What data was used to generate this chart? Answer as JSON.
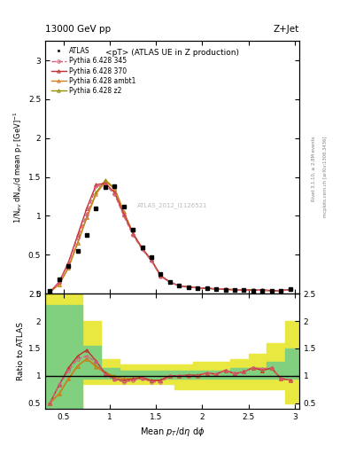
{
  "title_top": "13000 GeV pp",
  "title_right": "Z+Jet",
  "plot_title": "<pT> (ATLAS UE in Z production)",
  "xlabel": "Mean $p_T$/d$\\eta$ d$\\phi$",
  "ylabel_main": "1/N$_{ev}$ dN$_{ev}$/d mean p$_T$ [GeV]$^{-1}$",
  "ylabel_ratio": "Ratio to ATLAS",
  "right_label1": "Rivet 3.1.10, ≥ 2.8M events",
  "right_label2": "mcplots.cern.ch [arXiv:1306.3436]",
  "watermark": "ATLAS_2012_I1126521",
  "xlim": [
    0.3,
    3.05
  ],
  "ylim_main": [
    0.0,
    3.25
  ],
  "ylim_ratio": [
    0.4,
    2.5
  ],
  "xticks": [
    0.5,
    1.0,
    1.5,
    2.0,
    2.5,
    3.0
  ],
  "yticks_main": [
    0.0,
    0.5,
    1.0,
    1.5,
    2.0,
    2.5,
    3.0
  ],
  "yticks_ratio": [
    0.5,
    1.0,
    1.5,
    2.0,
    2.5
  ],
  "atlas_x": [
    0.35,
    0.45,
    0.55,
    0.65,
    0.75,
    0.85,
    0.95,
    1.05,
    1.15,
    1.25,
    1.35,
    1.45,
    1.55,
    1.65,
    1.75,
    1.85,
    1.95,
    2.05,
    2.15,
    2.25,
    2.35,
    2.45,
    2.55,
    2.65,
    2.75,
    2.85,
    2.95
  ],
  "atlas_y": [
    0.04,
    0.18,
    0.35,
    0.55,
    0.75,
    1.1,
    1.37,
    1.38,
    1.12,
    0.82,
    0.6,
    0.47,
    0.25,
    0.15,
    0.1,
    0.085,
    0.075,
    0.065,
    0.06,
    0.05,
    0.05,
    0.045,
    0.04,
    0.04,
    0.035,
    0.04,
    0.06
  ],
  "py345_x": [
    0.35,
    0.45,
    0.55,
    0.65,
    0.75,
    0.85,
    0.95,
    1.05,
    1.15,
    1.25,
    1.35,
    1.45,
    1.55,
    1.65,
    1.75,
    1.85,
    1.95,
    2.05,
    2.15,
    2.25,
    2.35,
    2.45,
    2.55,
    2.65,
    2.75,
    2.85,
    2.95
  ],
  "py345_y": [
    0.02,
    0.15,
    0.38,
    0.72,
    1.02,
    1.38,
    1.4,
    1.28,
    1.0,
    0.75,
    0.57,
    0.42,
    0.22,
    0.15,
    0.1,
    0.085,
    0.075,
    0.068,
    0.062,
    0.055,
    0.052,
    0.048,
    0.046,
    0.045,
    0.04,
    0.038,
    0.055
  ],
  "py370_x": [
    0.35,
    0.45,
    0.55,
    0.65,
    0.75,
    0.85,
    0.95,
    1.05,
    1.15,
    1.25,
    1.35,
    1.45,
    1.55,
    1.65,
    1.75,
    1.85,
    1.95,
    2.05,
    2.15,
    2.25,
    2.35,
    2.45,
    2.55,
    2.65,
    2.75,
    2.85,
    2.95
  ],
  "py370_y": [
    0.02,
    0.15,
    0.4,
    0.75,
    1.1,
    1.4,
    1.42,
    1.3,
    1.02,
    0.77,
    0.58,
    0.43,
    0.23,
    0.15,
    0.1,
    0.086,
    0.076,
    0.068,
    0.062,
    0.055,
    0.052,
    0.048,
    0.046,
    0.044,
    0.04,
    0.038,
    0.055
  ],
  "pyambt1_x": [
    0.35,
    0.45,
    0.55,
    0.65,
    0.75,
    0.85,
    0.95,
    1.05,
    1.15,
    1.25,
    1.35,
    1.45,
    1.55,
    1.65,
    1.75,
    1.85,
    1.95,
    2.05,
    2.15,
    2.25,
    2.35,
    2.45,
    2.55,
    2.65,
    2.75,
    2.85,
    2.95
  ],
  "pyambt1_y": [
    0.02,
    0.12,
    0.33,
    0.65,
    0.98,
    1.28,
    1.44,
    1.35,
    1.05,
    0.78,
    0.58,
    0.43,
    0.23,
    0.15,
    0.1,
    0.085,
    0.075,
    0.068,
    0.062,
    0.055,
    0.052,
    0.048,
    0.046,
    0.044,
    0.04,
    0.038,
    0.055
  ],
  "pyz2_x": [
    0.35,
    0.45,
    0.55,
    0.65,
    0.75,
    0.85,
    0.95,
    1.05,
    1.15,
    1.25,
    1.35,
    1.45,
    1.55,
    1.65,
    1.75,
    1.85,
    1.95,
    2.05,
    2.15,
    2.25,
    2.35,
    2.45,
    2.55,
    2.65,
    2.75,
    2.85,
    2.95
  ],
  "pyz2_y": [
    0.02,
    0.12,
    0.33,
    0.65,
    0.98,
    1.3,
    1.46,
    1.36,
    1.05,
    0.78,
    0.58,
    0.43,
    0.23,
    0.15,
    0.1,
    0.086,
    0.075,
    0.068,
    0.062,
    0.055,
    0.052,
    0.048,
    0.046,
    0.044,
    0.04,
    0.038,
    0.055
  ],
  "ratio_345": [
    0.5,
    0.83,
    1.09,
    1.31,
    1.36,
    1.25,
    1.02,
    0.93,
    0.89,
    0.91,
    0.95,
    0.89,
    0.88,
    1.0,
    1.0,
    1.0,
    1.0,
    1.05,
    1.03,
    1.1,
    1.04,
    1.07,
    1.15,
    1.13,
    1.14,
    0.95,
    0.92
  ],
  "ratio_370": [
    0.5,
    0.83,
    1.14,
    1.36,
    1.47,
    1.27,
    1.04,
    0.94,
    0.91,
    0.94,
    0.97,
    0.91,
    0.92,
    1.0,
    1.0,
    1.01,
    1.01,
    1.05,
    1.03,
    1.1,
    1.04,
    1.07,
    1.15,
    1.1,
    1.14,
    0.95,
    0.92
  ],
  "ratio_ambt1": [
    0.5,
    0.67,
    0.94,
    1.18,
    1.31,
    1.16,
    1.05,
    0.98,
    0.94,
    0.95,
    0.97,
    0.91,
    0.92,
    1.0,
    1.0,
    1.0,
    1.0,
    1.05,
    1.03,
    1.1,
    1.04,
    1.07,
    1.15,
    1.1,
    1.14,
    0.95,
    0.92
  ],
  "ratio_z2": [
    0.5,
    0.67,
    0.94,
    1.18,
    1.31,
    1.18,
    1.06,
    0.99,
    0.94,
    0.95,
    0.97,
    0.91,
    0.92,
    1.0,
    1.0,
    1.01,
    1.0,
    1.05,
    1.03,
    1.1,
    1.04,
    1.07,
    1.15,
    1.1,
    1.14,
    0.95,
    0.92
  ],
  "band_x_edges": [
    0.3,
    0.5,
    0.7,
    0.9,
    1.1,
    1.3,
    1.5,
    1.7,
    1.9,
    2.1,
    2.3,
    2.5,
    2.7,
    2.9,
    3.1
  ],
  "band_green_lo": [
    0.4,
    0.4,
    0.95,
    0.95,
    0.95,
    0.95,
    0.95,
    0.95,
    0.95,
    0.95,
    0.95,
    0.95,
    0.95,
    0.95
  ],
  "band_green_hi": [
    2.3,
    2.3,
    1.55,
    1.15,
    1.1,
    1.1,
    1.1,
    1.1,
    1.1,
    1.1,
    1.15,
    1.15,
    1.25,
    1.5
  ],
  "band_yellow_lo": [
    0.4,
    0.4,
    0.85,
    0.85,
    0.85,
    0.85,
    0.85,
    0.75,
    0.75,
    0.75,
    0.75,
    0.75,
    0.75,
    0.5
  ],
  "band_yellow_hi": [
    2.5,
    2.5,
    2.0,
    1.3,
    1.2,
    1.2,
    1.2,
    1.2,
    1.25,
    1.25,
    1.3,
    1.4,
    1.6,
    2.0
  ],
  "color_345": "#d4607a",
  "color_370": "#c03030",
  "color_ambt1": "#d48020",
  "color_z2": "#909000",
  "color_atlas": "#000000",
  "color_green_band": "#80d080",
  "color_yellow_band": "#e8e840"
}
